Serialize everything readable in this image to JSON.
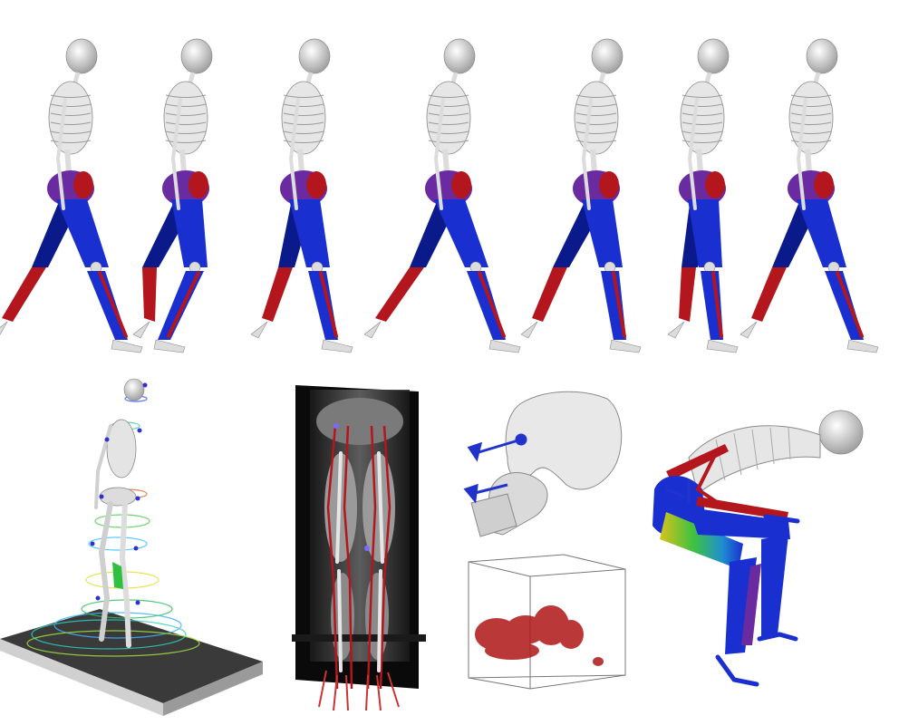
{
  "palette": {
    "bone": "#dcdcdc",
    "bone_stroke": "#8a8a8a",
    "muscle_blue": "#1a2fd0",
    "muscle_dark_blue": "#0b1a8a",
    "muscle_red": "#b3161d",
    "muscle_purple": "#6a2aa0",
    "mri_black": "#0a0a0a",
    "mri_gray": "#8c8c8c",
    "treadmill": "#3a3a3a",
    "treadmill_side": "#d0d0d0",
    "volume_red": "#b01616",
    "marker_purple": "#7a6cff",
    "arrow_blue": "#2233cc"
  },
  "gait_frames": [
    {
      "name": "gait-frame-1"
    },
    {
      "name": "gait-frame-2"
    },
    {
      "name": "gait-frame-3"
    },
    {
      "name": "gait-frame-4"
    },
    {
      "name": "gait-frame-5"
    },
    {
      "name": "gait-frame-6"
    },
    {
      "name": "gait-frame-7"
    }
  ],
  "panels": {
    "treadmill": {
      "icon": "skeleton-treadmill-motion-trails"
    },
    "mri": {
      "icon": "mri-slice-with-leg-muscles"
    },
    "hip_joint": {
      "icon": "hip-joint-with-axes"
    },
    "volume_box": {
      "icon": "volume-render-box"
    },
    "squat": {
      "icon": "squatting-skeleton-with-muscle-strain"
    }
  }
}
